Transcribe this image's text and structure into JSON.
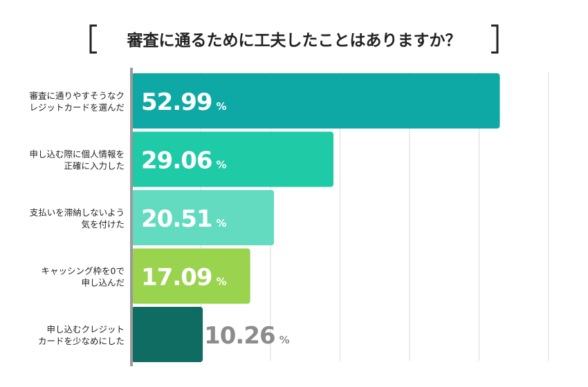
{
  "chart_data": {
    "type": "bar",
    "orientation": "horizontal",
    "title": "審査に通るために工夫したことはありますか？",
    "categories": [
      [
        "審査に通りやすそうなク",
        "レジットカードを選んだ"
      ],
      [
        "申し込む際に個人情報を",
        "正確に入力した"
      ],
      [
        "支払いを滞納しないよう",
        "気を付けた"
      ],
      [
        "キャッシング枠を0で",
        "申し込んだ"
      ],
      [
        "申し込むクレジット",
        "カードを少なめにした"
      ]
    ],
    "values": [
      52.99,
      29.06,
      20.51,
      17.09,
      10.26
    ],
    "value_labels": [
      "52.99",
      "29.06",
      "20.51",
      "17.09",
      "10.26"
    ],
    "unit": "%",
    "xlim": [
      0,
      60
    ],
    "grid": true,
    "legend": "none",
    "colors": {
      "bars": [
        "#0fa9a5",
        "#1fcba6",
        "#63dbc0",
        "#9ad34e",
        "#0f6c63"
      ],
      "label_inside": "#ffffff",
      "label_outside": "#8c8c8c",
      "grid": "#d8d8d8",
      "axis": "#9a9a9a",
      "bracket": "#222222"
    }
  }
}
